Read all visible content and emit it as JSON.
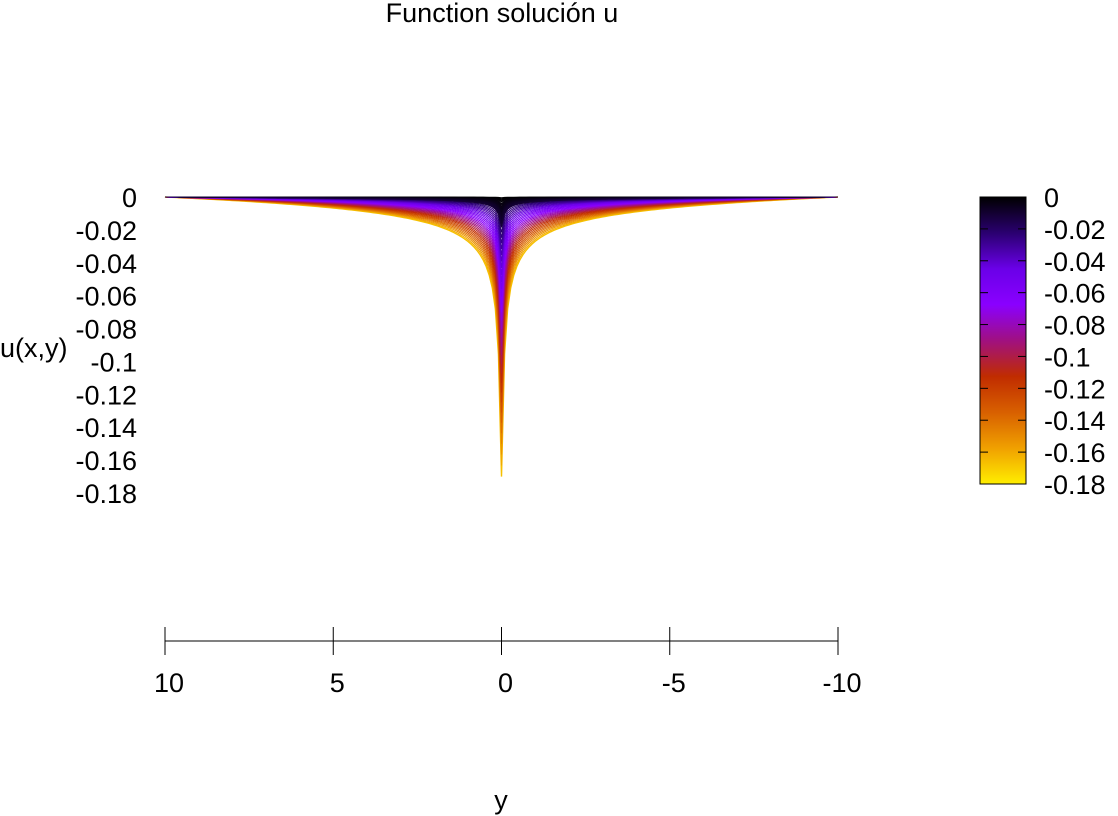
{
  "chart_data": {
    "type": "surface",
    "title": "Function solución u",
    "xlabel": "y",
    "zlabel": "u(x,y)",
    "x_axis": {
      "range": [
        10,
        -10
      ],
      "ticks": [
        10,
        5,
        0,
        -5,
        -10
      ],
      "tick_labels": [
        "10",
        "5",
        "0",
        "-5",
        "-10"
      ]
    },
    "z_axis": {
      "range": [
        -0.18,
        0
      ],
      "ticks": [
        0,
        -0.02,
        -0.04,
        -0.06,
        -0.08,
        -0.1,
        -0.12,
        -0.14,
        -0.16,
        -0.18
      ],
      "tick_labels": [
        "0",
        "-0.02",
        "-0.04",
        "-0.06",
        "-0.08",
        "-0.1",
        "-0.12",
        "-0.14",
        "-0.16",
        "-0.18"
      ]
    },
    "colorbar": {
      "range": [
        -0.18,
        0
      ],
      "ticks": [
        0,
        -0.02,
        -0.04,
        -0.06,
        -0.08,
        -0.1,
        -0.12,
        -0.14,
        -0.16,
        -0.18
      ],
      "tick_labels": [
        "0",
        "-0.02",
        "-0.04",
        "-0.06",
        "-0.08",
        "-0.1",
        "-0.12",
        "-0.14",
        "-0.16",
        "-0.18"
      ],
      "palette": [
        "#ffee00",
        "#f0a000",
        "#d86000",
        "#c02c00",
        "#a01080",
        "#8a00ff",
        "#6a00e8",
        "#2a0070",
        "#000000"
      ]
    },
    "series": [
      {
        "y": [
          10,
          7.5,
          5,
          3.75,
          2.5,
          1.25,
          0.75,
          0.25,
          0,
          -0.25,
          -0.75,
          -1.25,
          -2.5,
          -3.75,
          -5,
          -7.5,
          -10
        ],
        "u": [
          0,
          -0.0055,
          -0.013,
          -0.019,
          -0.0265,
          -0.037,
          -0.048,
          -0.066,
          -0.17,
          -0.066,
          -0.048,
          -0.037,
          -0.0265,
          -0.019,
          -0.013,
          -0.0055,
          0
        ],
        "min": -0.17
      }
    ],
    "curve_count": 40,
    "grid": false,
    "legend": "none"
  }
}
